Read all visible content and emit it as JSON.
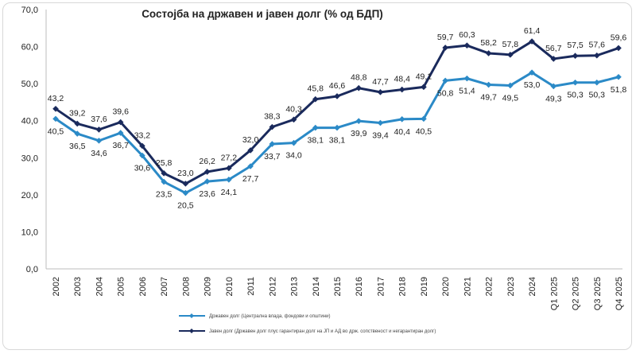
{
  "chart_data": {
    "type": "line",
    "title": "Состојба на државен и јавен долг (% од БДП)",
    "categories": [
      "2002",
      "2003",
      "2004",
      "2005",
      "2006",
      "2007",
      "2008",
      "2009",
      "2010",
      "2011",
      "2012",
      "2013",
      "2014",
      "2015",
      "2016",
      "2017",
      "2018",
      "2019",
      "2020",
      "2021",
      "2022",
      "2023",
      "2024",
      "Q1 2025",
      "Q2 2025",
      "Q3 2025",
      "Q4 2025"
    ],
    "ylim": [
      0,
      70
    ],
    "yticks": [
      "0,0",
      "10,0",
      "20,0",
      "30,0",
      "40,0",
      "50,0",
      "60,0",
      "70,0"
    ],
    "grid": false,
    "legend_position": "bottom-left",
    "series": [
      {
        "name": "Државен долг (Централна влада, фондови и општини)",
        "color": "#2b8ac7",
        "values": [
          40.5,
          36.5,
          34.6,
          36.7,
          30.6,
          23.5,
          20.5,
          23.6,
          24.1,
          27.7,
          33.7,
          34.0,
          38.1,
          38.1,
          39.9,
          39.4,
          40.4,
          40.5,
          50.8,
          51.4,
          49.7,
          49.5,
          53.0,
          49.3,
          50.3,
          50.3,
          51.8
        ],
        "labels": [
          "40,5",
          "36,5",
          "34,6",
          "36,7",
          "30,6",
          "23,5",
          "20,5",
          "23,6",
          "24,1",
          "27,7",
          "33,7",
          "34,0",
          "38,1",
          "38,1",
          "39,9",
          "39,4",
          "40,4",
          "40,5",
          "50,8",
          "51,4",
          "49,7",
          "49,5",
          "53,0",
          "49,3",
          "50,3",
          "50,3",
          "51,8"
        ]
      },
      {
        "name": "Јавен долг (Државен долг плус гарантиран долг на ЈП и АД во држ. сопственост и негарантиран долг)",
        "color": "#1a2a5c",
        "values": [
          43.2,
          39.2,
          37.6,
          39.6,
          33.2,
          25.8,
          23.0,
          26.2,
          27.2,
          32.0,
          38.3,
          40.3,
          45.8,
          46.6,
          48.8,
          47.7,
          48.4,
          49.1,
          59.7,
          60.3,
          58.2,
          57.8,
          61.4,
          56.7,
          57.5,
          57.6,
          59.6
        ],
        "labels": [
          "43,2",
          "39,2",
          "37,6",
          "39,6",
          "33,2",
          "25,8",
          "23,0",
          "26,2",
          "27,2",
          "32,0",
          "38,3",
          "40,3",
          "45,8",
          "46,6",
          "48,8",
          "47,7",
          "48,4",
          "49,1",
          "59,7",
          "60,3",
          "58,2",
          "57,8",
          "61,4",
          "56,7",
          "57,5",
          "57,6",
          "59,6"
        ]
      }
    ]
  }
}
